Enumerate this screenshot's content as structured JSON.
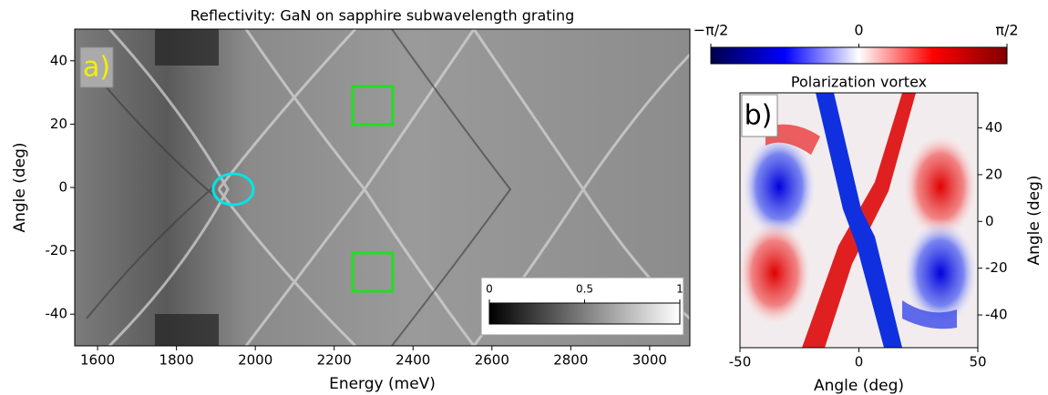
{
  "chart_data": [
    {
      "type": "heatmap",
      "title": "Reflectivity: GaN on sapphire subwavelength grating",
      "panel_label": "a)",
      "xlabel": "Energy (meV)",
      "ylabel": "Angle (deg)",
      "xlim": [
        1542,
        3102
      ],
      "xticks": [
        1600,
        1800,
        2000,
        2200,
        2400,
        2600,
        2800,
        3000
      ],
      "ylim": [
        -50,
        50
      ],
      "yticks": [
        -40,
        -20,
        0,
        20,
        40
      ],
      "colorbar": {
        "lim": [
          0,
          1
        ],
        "ticks": [
          0,
          0.5,
          1
        ],
        "colors": [
          "#000000",
          "#ffffff"
        ]
      }
    },
    {
      "type": "heatmap",
      "title": "Polarization vortex",
      "panel_label": "b)",
      "xlabel": "Angle (deg)",
      "ylabel": "Angle (deg)",
      "xlim": [
        -50,
        50
      ],
      "xticks": [
        -50,
        0,
        50
      ],
      "ylim": [
        -54,
        55
      ],
      "yticks": [
        -40,
        -20,
        0,
        20,
        40
      ],
      "colorbar": {
        "lim": [
          -1.5708,
          1.5708
        ],
        "ticks": [
          {
            "value": -1.5708,
            "label": "−π/2"
          },
          0,
          {
            "value": 1.5708,
            "label": "π/2"
          }
        ],
        "colors": [
          "#00004c",
          "#0000ff",
          "#ffffff",
          "#ff0000",
          "#800000"
        ]
      }
    }
  ]
}
